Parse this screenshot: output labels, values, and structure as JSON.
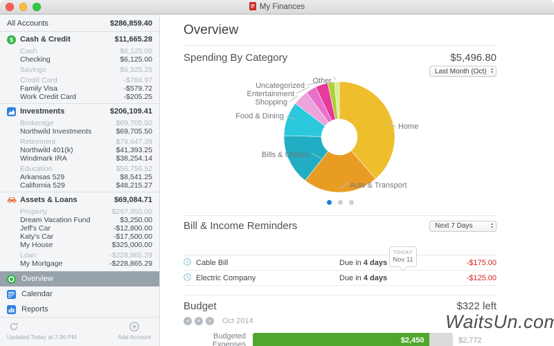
{
  "window": {
    "title": "My Finances"
  },
  "sidebar": {
    "rows": [
      {
        "label": "All Accounts",
        "amount": "$286,859.40",
        "type": "total"
      },
      {
        "type": "divider"
      },
      {
        "label": "Cash & Credit",
        "amount": "$11,665.28",
        "type": "section",
        "icon": "dollar"
      },
      {
        "label": "Cash",
        "amount": "$6,125.00",
        "type": "group"
      },
      {
        "label": "Checking",
        "amount": "$6,125.00",
        "type": "account"
      },
      {
        "label": "Savings",
        "amount": "$6,325.25",
        "type": "group"
      },
      {
        "label": "Credit Card",
        "amount": "-$784.97",
        "type": "group"
      },
      {
        "label": "Family Visa",
        "amount": "-$579.72",
        "type": "account"
      },
      {
        "label": "Work Credit Card",
        "amount": "-$205.25",
        "type": "account"
      },
      {
        "type": "divider"
      },
      {
        "label": "Investments",
        "amount": "$206,109.41",
        "type": "section",
        "icon": "chart"
      },
      {
        "label": "Brokerage",
        "amount": "$69,705.50",
        "type": "group"
      },
      {
        "label": "Northwild Investments",
        "amount": "$69,705.50",
        "type": "account"
      },
      {
        "label": "Retirement",
        "amount": "$79,647.39",
        "type": "group"
      },
      {
        "label": "Northwild 401(k)",
        "amount": "$41,393.25",
        "type": "account"
      },
      {
        "label": "Windmark IRA",
        "amount": "$38,254.14",
        "type": "account"
      },
      {
        "label": "Education",
        "amount": "$56,756.52",
        "type": "group"
      },
      {
        "label": "Arkansas 529",
        "amount": "$8,541.25",
        "type": "account"
      },
      {
        "label": "California 529",
        "amount": "$48,215.27",
        "type": "account"
      },
      {
        "type": "divider"
      },
      {
        "label": "Assets & Loans",
        "amount": "$69,084.71",
        "type": "section",
        "icon": "car"
      },
      {
        "label": "Property",
        "amount": "$297,950.00",
        "type": "group"
      },
      {
        "label": "Dream Vacation Fund",
        "amount": "$3,250.00",
        "type": "account"
      },
      {
        "label": "Jeff's Car",
        "amount": "-$12,800.00",
        "type": "account"
      },
      {
        "label": "Katy's Car",
        "amount": "-$17,500.00",
        "type": "account"
      },
      {
        "label": "My House",
        "amount": "$325,000.00",
        "type": "account"
      },
      {
        "label": "Loan",
        "amount": "-$228,865.29",
        "type": "group"
      },
      {
        "label": "My Mortgage",
        "amount": "-$228,865.29",
        "type": "account"
      }
    ],
    "nav": [
      {
        "label": "Overview",
        "icon": "target",
        "selected": true
      },
      {
        "label": "Calendar",
        "icon": "calendar"
      },
      {
        "label": "Reports",
        "icon": "report"
      }
    ],
    "footer": {
      "updated": "Updated Today at 7:36 PM",
      "add": "Add Account"
    }
  },
  "main": {
    "title": "Overview",
    "spending": {
      "heading": "Spending By Category",
      "total": "$5,496.80",
      "period_selector": "Last Month (Oct)"
    },
    "reminders": {
      "heading": "Bill & Income Reminders",
      "period_selector": "Next 7 Days",
      "today_badge": {
        "top": "TODAY",
        "date": "Nov 11"
      },
      "rows": [
        {
          "name": "Cable Bill",
          "due_prefix": "Due in",
          "due_value": "4 days",
          "amount": "-$175.00"
        },
        {
          "name": "Electric Company",
          "due_prefix": "Due in",
          "due_value": "4 days",
          "amount": "-$125.00"
        }
      ]
    },
    "budget": {
      "heading": "Budget",
      "remaining": "$322 left",
      "period": "Oct 2014",
      "bar_label": "Budgeted Expenses",
      "spent_label": "$2,450",
      "total_label": "$2,772",
      "spent_pct": 88.4,
      "bar_color": "#4FA72B"
    }
  },
  "chart_data": {
    "type": "pie",
    "subtype": "donut",
    "title": "Spending By Category",
    "total_label": "$5,496.80",
    "period": "Last Month (Oct)",
    "legend_position": "around-slices",
    "slices": [
      {
        "label": "Home",
        "pct": 38.6,
        "color": "#EFBE2D"
      },
      {
        "label": "Auto & Transport",
        "pct": 22.0,
        "color": "#E99C23"
      },
      {
        "label": "Bills & Utilities",
        "pct": 14.8,
        "color": "#21ADC3"
      },
      {
        "label": "Food & Dining",
        "pct": 10.0,
        "color": "#2BC7DC"
      },
      {
        "label": "Shopping",
        "pct": 4.5,
        "color": "#EDA3DC"
      },
      {
        "label": "Entertainment",
        "pct": 3.1,
        "color": "#E96FCA"
      },
      {
        "label": "Uncategorized",
        "pct": 3.6,
        "color": "#E8399D"
      },
      {
        "label": "",
        "pct": 2.0,
        "color": "#AFD13A"
      },
      {
        "label": "Other",
        "pct": 1.4,
        "color": "#DBEC9B"
      }
    ],
    "pager": {
      "pages": 3,
      "active": 0
    }
  },
  "colors": {
    "accent_blue": "#1D7FD6",
    "negative_red": "#D9201F",
    "budget_green": "#4FA72B"
  },
  "watermark": "WaitsUn.com"
}
